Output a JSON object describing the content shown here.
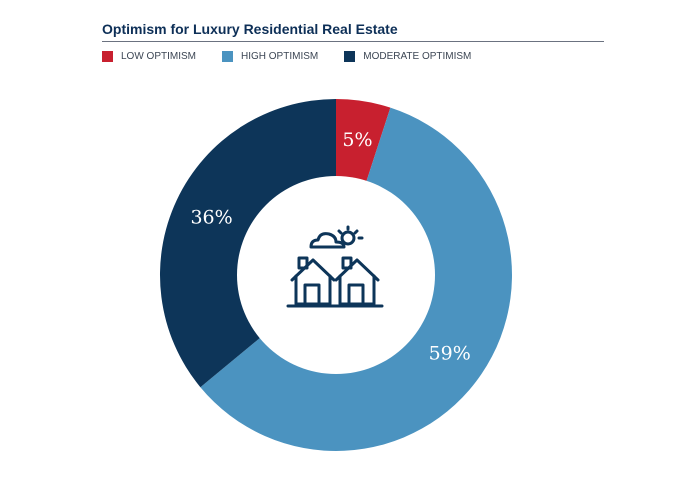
{
  "chart_data": {
    "type": "pie",
    "title": "Optimism for Luxury Residential Real Estate",
    "categories": [
      "LOW OPTIMISM",
      "HIGH OPTIMISM",
      "MODERATE OPTIMISM"
    ],
    "values": [
      5,
      59,
      36
    ],
    "labels": [
      "5%",
      "59%",
      "36%"
    ],
    "colors": [
      "#c8202f",
      "#4b93c0",
      "#0d3559"
    ],
    "donut": true,
    "legend_position": "top-left",
    "center_icon": "houses-with-cloud-and-sun-icon"
  }
}
